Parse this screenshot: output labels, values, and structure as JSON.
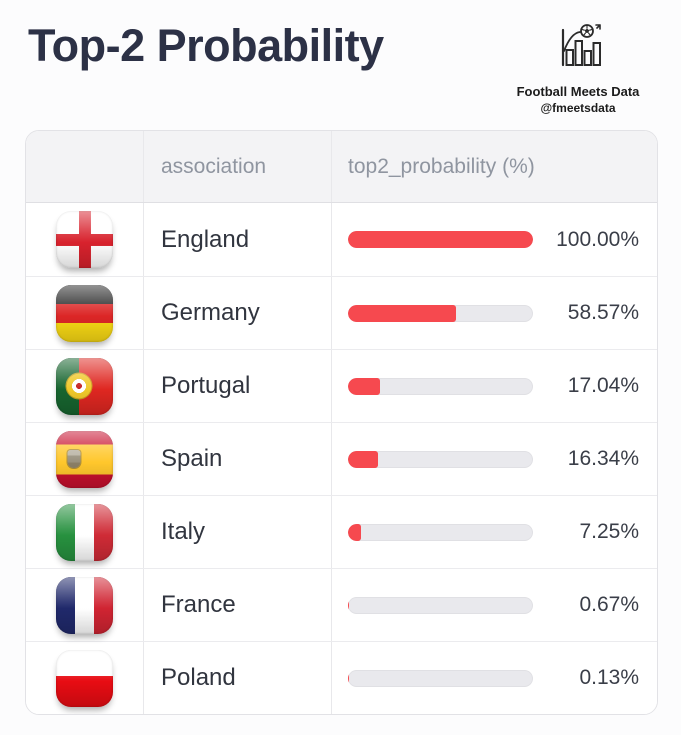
{
  "page": {
    "title": "Top-2 Probability",
    "accent_color": "#f6494f",
    "track_color": "#e9e9ed"
  },
  "brand": {
    "name": "Football Meets Data",
    "handle": "@fmeetsdata",
    "logo_icon": "bar-chart-with-football-icon"
  },
  "table": {
    "columns": [
      "",
      "association",
      "top2_probability (%)"
    ],
    "rows": [
      {
        "flag": "england",
        "flag_icon": "england-flag-icon",
        "association": "England",
        "value_pct": 100.0,
        "value_label": "100.00%"
      },
      {
        "flag": "germany",
        "flag_icon": "germany-flag-icon",
        "association": "Germany",
        "value_pct": 58.57,
        "value_label": "58.57%"
      },
      {
        "flag": "portugal",
        "flag_icon": "portugal-flag-icon",
        "association": "Portugal",
        "value_pct": 17.04,
        "value_label": "17.04%"
      },
      {
        "flag": "spain",
        "flag_icon": "spain-flag-icon",
        "association": "Spain",
        "value_pct": 16.34,
        "value_label": "16.34%"
      },
      {
        "flag": "italy",
        "flag_icon": "italy-flag-icon",
        "association": "Italy",
        "value_pct": 7.25,
        "value_label": "7.25%"
      },
      {
        "flag": "france",
        "flag_icon": "france-flag-icon",
        "association": "France",
        "value_pct": 0.67,
        "value_label": "0.67%"
      },
      {
        "flag": "poland",
        "flag_icon": "poland-flag-icon",
        "association": "Poland",
        "value_pct": 0.13,
        "value_label": "0.13%"
      }
    ]
  },
  "chart_data": {
    "type": "bar",
    "orientation": "horizontal",
    "title": "Top-2 Probability",
    "categories": [
      "England",
      "Germany",
      "Portugal",
      "Spain",
      "Italy",
      "France",
      "Poland"
    ],
    "values": [
      100.0,
      58.57,
      17.04,
      16.34,
      7.25,
      0.67,
      0.13
    ],
    "value_labels": [
      "100.00%",
      "58.57%",
      "17.04%",
      "16.34%",
      "7.25%",
      "0.67%",
      "0.13%"
    ],
    "xlabel": "top2_probability (%)",
    "ylabel": "association",
    "xlim": [
      0,
      100
    ],
    "grid": false,
    "legend": "none",
    "bar_color": "#f6494f",
    "track_color": "#e9e9ed"
  }
}
